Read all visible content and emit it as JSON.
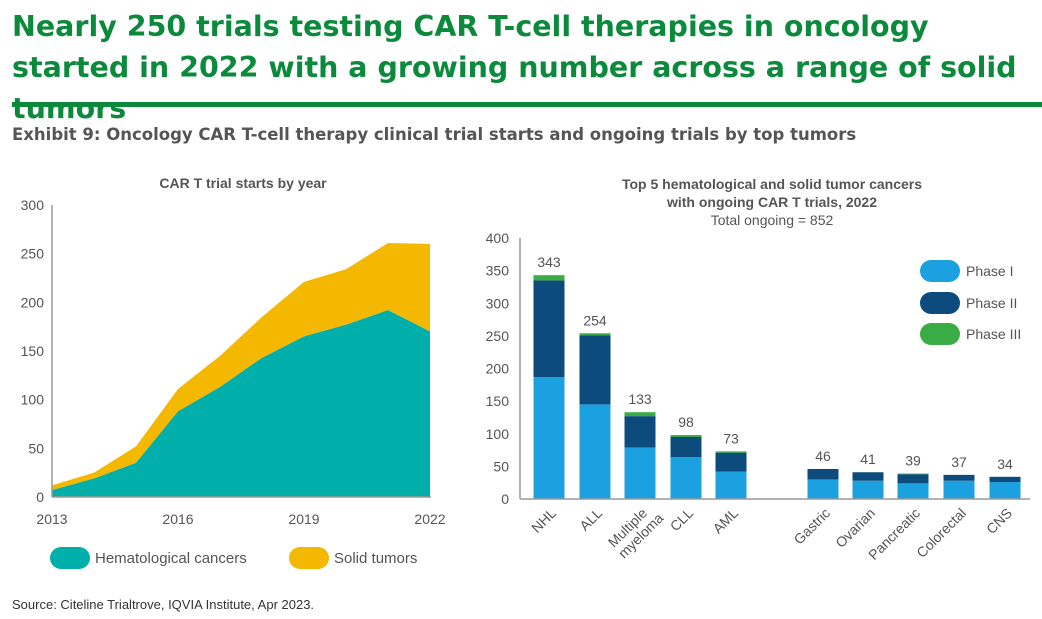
{
  "headline": "Nearly 250 trials testing CAR T-cell therapies in oncology started in 2022 with a growing number across a range of solid tumors",
  "exhibit_title": "Exhibit 9: Oncology CAR T-cell therapy clinical trial starts and ongoing trials by top tumors",
  "source": "Source: Citeline Trialtrove, IQVIA Institute, Apr 2023.",
  "colors": {
    "brand_green": "#0c8a3c",
    "hematological": "#00afa9",
    "solid": "#f5b800",
    "phase1": "#1ca1e0",
    "phase2": "#0d4b7c",
    "phase3": "#3aac45"
  },
  "chart_data": [
    {
      "type": "area",
      "stacked": true,
      "title": "CAR T trial starts by year",
      "x": [
        2013,
        2014,
        2015,
        2016,
        2017,
        2018,
        2019,
        2020,
        2021,
        2022
      ],
      "x_tick_labels": [
        "2013",
        "2016",
        "2019",
        "2022"
      ],
      "x_ticks": [
        2013,
        2016,
        2019,
        2022
      ],
      "ylim": [
        0,
        300
      ],
      "y_ticks": [
        0,
        50,
        100,
        150,
        200,
        250,
        300
      ],
      "grid": false,
      "legend_placement": "bottom",
      "series": [
        {
          "name": "Hematological cancers",
          "values": [
            7,
            19,
            35,
            88,
            113,
            143,
            165,
            177,
            192,
            170
          ]
        },
        {
          "name": "Solid tumors",
          "values": [
            5,
            6,
            17,
            23,
            32,
            42,
            56,
            57,
            69,
            90
          ]
        }
      ]
    },
    {
      "type": "bar",
      "stacked": true,
      "title_lines": [
        "Top 5 hematological and solid tumor cancers",
        "with ongoing CAR T trials, 2022"
      ],
      "subtitle": "Total ongoing = 852",
      "categories": [
        "NHL",
        "ALL",
        "Multiple myeloma",
        "CLL",
        "AML",
        "Gastric",
        "Ovarian",
        "Pancreatic",
        "Colorectal",
        "CNS"
      ],
      "category_label_lines": [
        [
          "NHL"
        ],
        [
          "ALL"
        ],
        [
          "Multiple",
          "myeloma"
        ],
        [
          "CLL"
        ],
        [
          "AML"
        ],
        [
          "Gastric"
        ],
        [
          "Ovarian"
        ],
        [
          "Pancreatic"
        ],
        [
          "Colorectal"
        ],
        [
          "CNS"
        ]
      ],
      "totals": [
        343,
        254,
        133,
        98,
        73,
        46,
        41,
        39,
        37,
        34
      ],
      "ylim": [
        0,
        400
      ],
      "y_ticks": [
        0,
        50,
        100,
        150,
        200,
        250,
        300,
        350,
        400
      ],
      "grid": false,
      "legend_placement": "top-right",
      "series": [
        {
          "name": "Phase I",
          "values": [
            187,
            145,
            79,
            64,
            42,
            30,
            28,
            24,
            28,
            26
          ]
        },
        {
          "name": "Phase II",
          "values": [
            148,
            106,
            48,
            31,
            29,
            16,
            13,
            14,
            9,
            8
          ]
        },
        {
          "name": "Phase III",
          "values": [
            8,
            3,
            6,
            3,
            2,
            0,
            0,
            1,
            0,
            0
          ]
        }
      ]
    }
  ]
}
